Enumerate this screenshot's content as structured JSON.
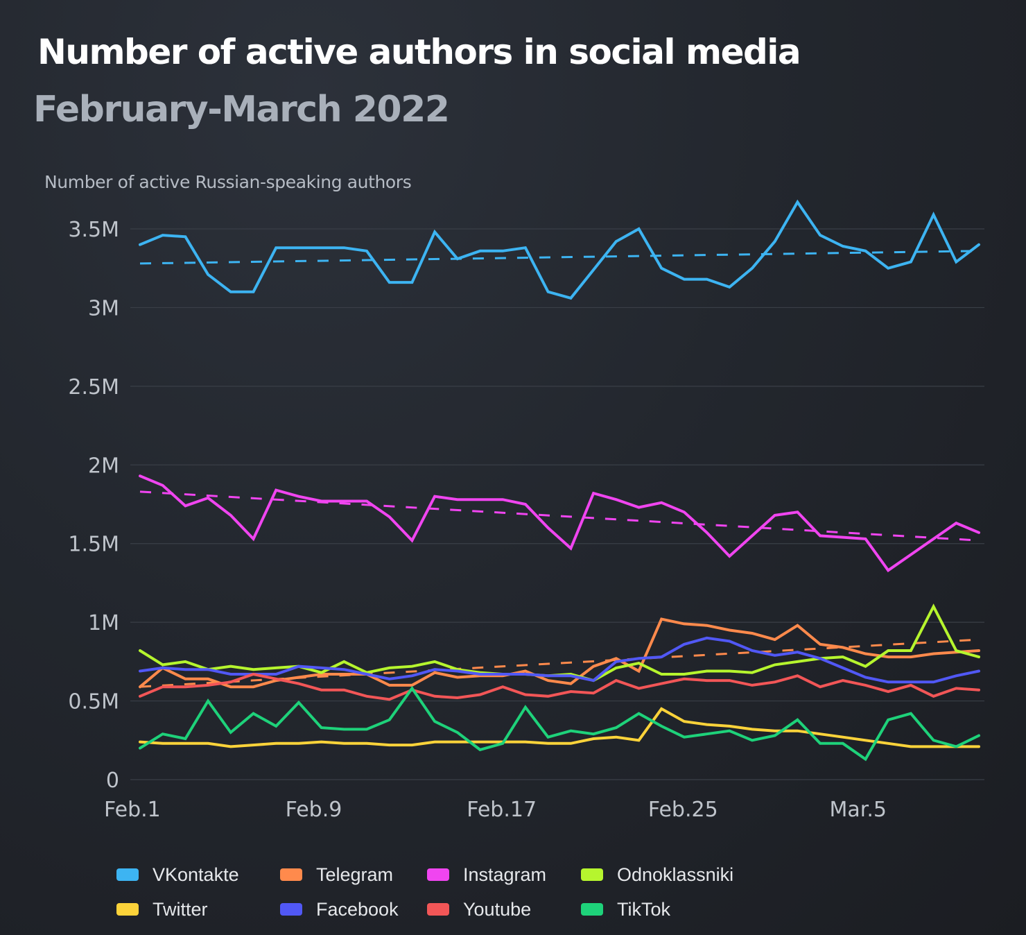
{
  "title": "Number of active authors in social media",
  "subtitle": "February-March 2022",
  "chart_data": {
    "type": "line",
    "title": "Number of active authors in social media",
    "subtitle": "February-March 2022",
    "ylabel": "Number of active Russian-speaking authors",
    "xlabel": "",
    "unit": "millions",
    "ylim": [
      0,
      3.5
    ],
    "yticks": [
      0,
      0.5,
      1,
      1.5,
      2,
      2.5,
      3,
      3.5
    ],
    "ytick_labels": [
      "0",
      "0.5M",
      "1M",
      "1.5M",
      "2M",
      "2.5M",
      "3M",
      "3.5M"
    ],
    "grid": true,
    "x_count": 38,
    "xticks": [
      {
        "index": 0,
        "label": "Feb.1"
      },
      {
        "index": 8,
        "label": "Feb.9"
      },
      {
        "index": 16,
        "label": "Feb.17"
      },
      {
        "index": 24,
        "label": "Feb.25"
      },
      {
        "index": 32,
        "label": "Mar.5"
      }
    ],
    "legend_position": "bottom",
    "series": [
      {
        "name": "VKontakte",
        "color": "#3db4f2",
        "values": [
          3.4,
          3.46,
          3.45,
          3.21,
          3.1,
          3.1,
          3.38,
          3.38,
          3.38,
          3.38,
          3.36,
          3.16,
          3.16,
          3.48,
          3.31,
          3.36,
          3.36,
          3.38,
          3.1,
          3.06,
          3.24,
          3.42,
          3.5,
          3.25,
          3.18,
          3.18,
          3.13,
          3.25,
          3.42,
          3.67,
          3.46,
          3.39,
          3.36,
          3.25,
          3.29,
          3.59,
          3.29,
          3.4
        ],
        "trend": [
          3.28,
          3.36
        ]
      },
      {
        "name": "Telegram",
        "color": "#ff8a4c",
        "values": [
          0.59,
          0.71,
          0.64,
          0.64,
          0.59,
          0.59,
          0.63,
          0.65,
          0.67,
          0.67,
          0.67,
          0.6,
          0.6,
          0.68,
          0.65,
          0.66,
          0.66,
          0.69,
          0.63,
          0.61,
          0.72,
          0.77,
          0.69,
          1.02,
          0.99,
          0.98,
          0.95,
          0.93,
          0.89,
          0.98,
          0.86,
          0.84,
          0.8,
          0.78,
          0.78,
          0.8,
          0.81,
          0.82
        ],
        "trend": [
          0.59,
          0.89
        ]
      },
      {
        "name": "Instagram",
        "color": "#f045f0",
        "values": [
          1.93,
          1.87,
          1.74,
          1.79,
          1.68,
          1.53,
          1.84,
          1.8,
          1.77,
          1.77,
          1.77,
          1.67,
          1.52,
          1.8,
          1.78,
          1.78,
          1.78,
          1.75,
          1.6,
          1.47,
          1.82,
          1.78,
          1.73,
          1.76,
          1.7,
          1.57,
          1.42,
          1.55,
          1.68,
          1.7,
          1.55,
          1.54,
          1.53,
          1.33,
          1.43,
          1.53,
          1.63,
          1.57
        ],
        "trend": [
          1.83,
          1.52
        ]
      },
      {
        "name": "Odnoklassniki",
        "color": "#b6f52e",
        "values": [
          0.82,
          0.73,
          0.75,
          0.7,
          0.72,
          0.7,
          0.71,
          0.72,
          0.68,
          0.75,
          0.68,
          0.71,
          0.72,
          0.75,
          0.7,
          0.68,
          0.67,
          0.67,
          0.66,
          0.67,
          0.63,
          0.71,
          0.74,
          0.67,
          0.67,
          0.69,
          0.69,
          0.68,
          0.73,
          0.75,
          0.77,
          0.78,
          0.72,
          0.82,
          0.82,
          1.1,
          0.82,
          0.78
        ],
        "trend": null
      },
      {
        "name": "Twitter",
        "color": "#fcd33a",
        "values": [
          0.24,
          0.23,
          0.23,
          0.23,
          0.21,
          0.22,
          0.23,
          0.23,
          0.24,
          0.23,
          0.23,
          0.22,
          0.22,
          0.24,
          0.24,
          0.24,
          0.24,
          0.24,
          0.23,
          0.23,
          0.26,
          0.27,
          0.25,
          0.45,
          0.37,
          0.35,
          0.34,
          0.32,
          0.31,
          0.31,
          0.29,
          0.27,
          0.25,
          0.23,
          0.21,
          0.21,
          0.21,
          0.21
        ],
        "trend": null
      },
      {
        "name": "Facebook",
        "color": "#5158f5",
        "values": [
          0.69,
          0.71,
          0.7,
          0.7,
          0.67,
          0.67,
          0.67,
          0.72,
          0.71,
          0.7,
          0.67,
          0.64,
          0.66,
          0.7,
          0.69,
          0.67,
          0.67,
          0.67,
          0.66,
          0.66,
          0.63,
          0.75,
          0.77,
          0.78,
          0.86,
          0.9,
          0.88,
          0.82,
          0.79,
          0.81,
          0.77,
          0.71,
          0.65,
          0.62,
          0.62,
          0.62,
          0.66,
          0.69
        ],
        "trend": null
      },
      {
        "name": "Youtube",
        "color": "#f25657",
        "values": [
          0.53,
          0.59,
          0.59,
          0.6,
          0.62,
          0.67,
          0.64,
          0.61,
          0.57,
          0.57,
          0.53,
          0.51,
          0.57,
          0.53,
          0.52,
          0.54,
          0.59,
          0.54,
          0.53,
          0.56,
          0.55,
          0.63,
          0.58,
          0.61,
          0.64,
          0.63,
          0.63,
          0.6,
          0.62,
          0.66,
          0.59,
          0.63,
          0.6,
          0.56,
          0.6,
          0.53,
          0.58,
          0.57
        ],
        "trend": null
      },
      {
        "name": "TikTok",
        "color": "#1ed27a",
        "values": [
          0.2,
          0.29,
          0.26,
          0.5,
          0.3,
          0.42,
          0.34,
          0.49,
          0.33,
          0.32,
          0.32,
          0.38,
          0.58,
          0.37,
          0.3,
          0.19,
          0.23,
          0.46,
          0.27,
          0.31,
          0.29,
          0.33,
          0.42,
          0.34,
          0.27,
          0.29,
          0.31,
          0.25,
          0.28,
          0.38,
          0.23,
          0.23,
          0.13,
          0.38,
          0.42,
          0.25,
          0.21,
          0.28
        ],
        "trend": null
      }
    ]
  }
}
